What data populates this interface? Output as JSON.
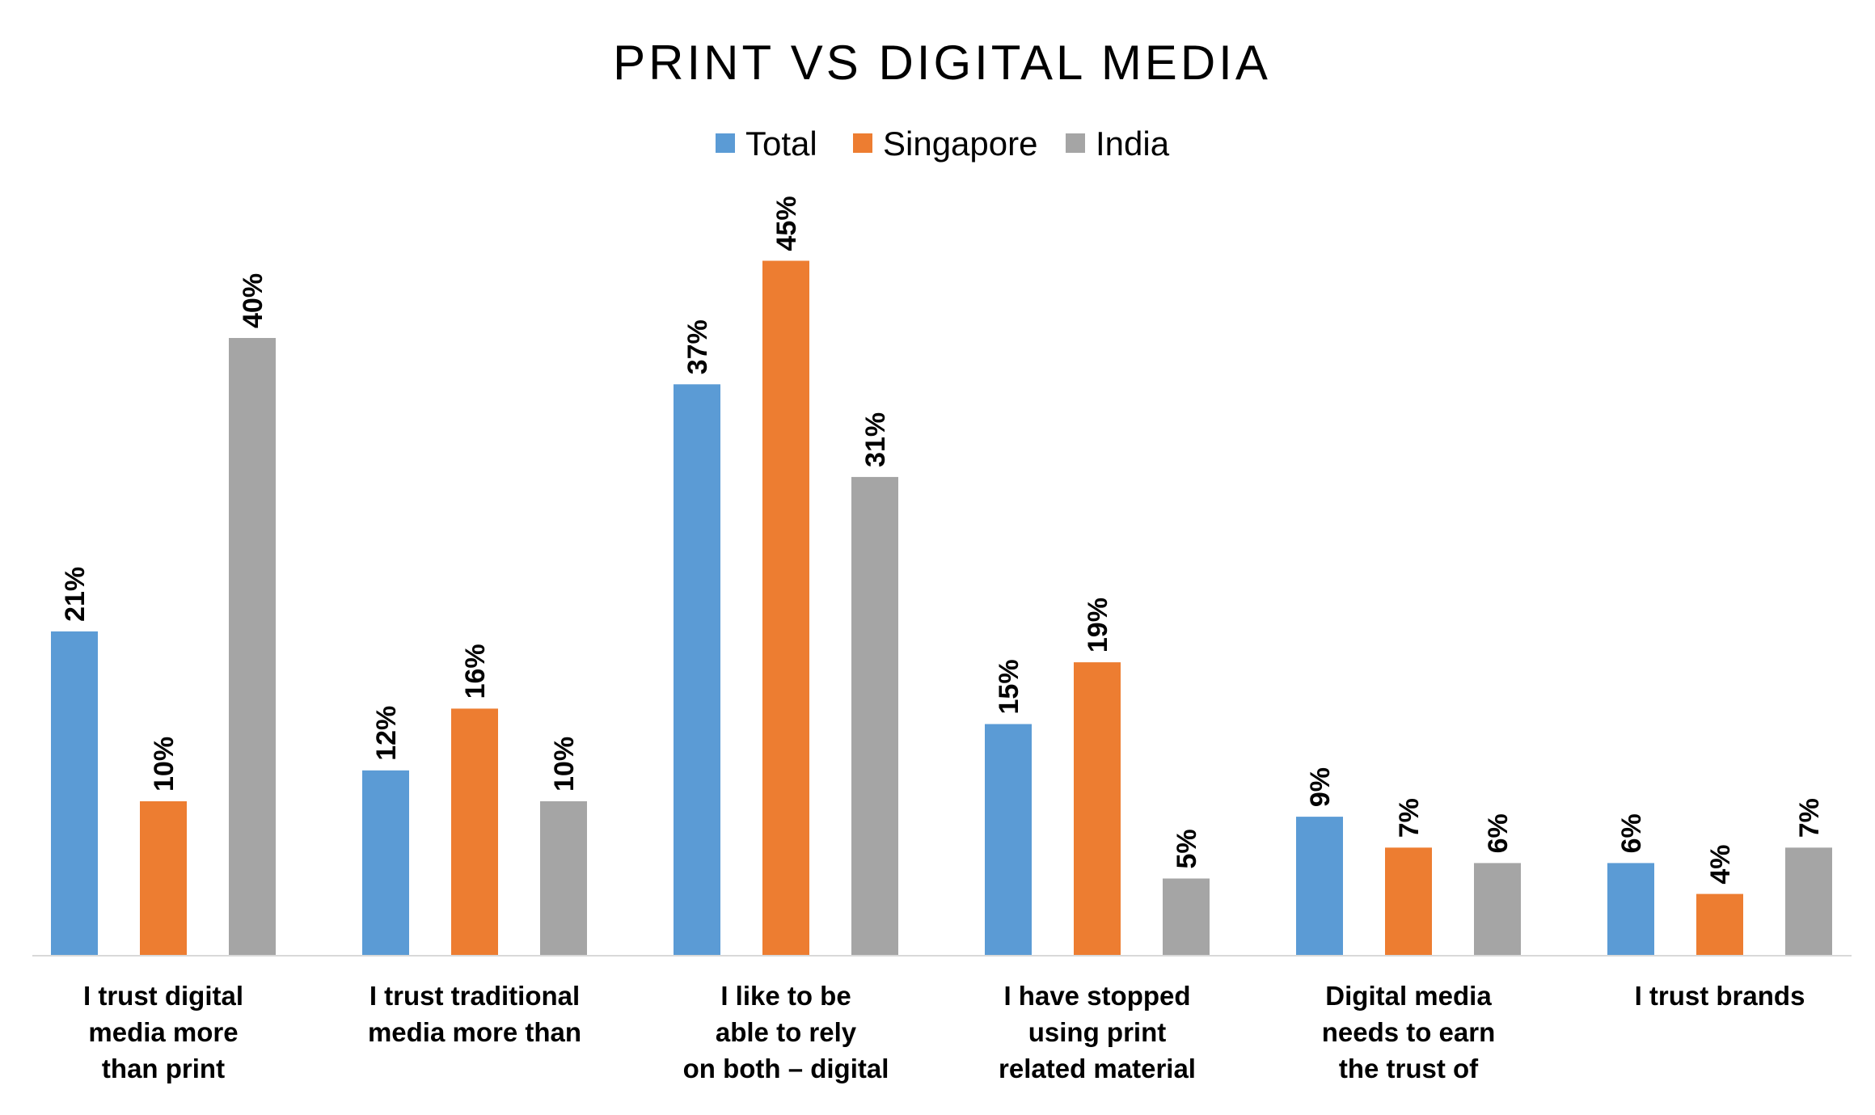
{
  "chart_data": {
    "type": "bar",
    "title": "PRINT VS DIGITAL MEDIA",
    "categories": [
      [
        "I trust digital",
        "media more",
        "than print"
      ],
      [
        "I trust traditional",
        "media more than"
      ],
      [
        "I like to be",
        "able to rely",
        "on both – digital"
      ],
      [
        "I have stopped",
        "using print",
        "related material"
      ],
      [
        "Digital media",
        "needs to earn",
        "the trust of"
      ],
      [
        "I trust brands"
      ]
    ],
    "series": [
      {
        "name": "Total",
        "color": "#5B9BD5",
        "values": [
          21,
          12,
          37,
          15,
          9,
          6
        ]
      },
      {
        "name": "Singapore",
        "color": "#ED7D31",
        "values": [
          10,
          16,
          45,
          19,
          7,
          4
        ]
      },
      {
        "name": "India",
        "color": "#A5A5A5",
        "values": [
          40,
          10,
          31,
          5,
          6,
          7
        ]
      }
    ],
    "value_suffix": "%",
    "ylim": [
      0,
      45
    ],
    "legend_position": "top-center",
    "grid": false
  }
}
